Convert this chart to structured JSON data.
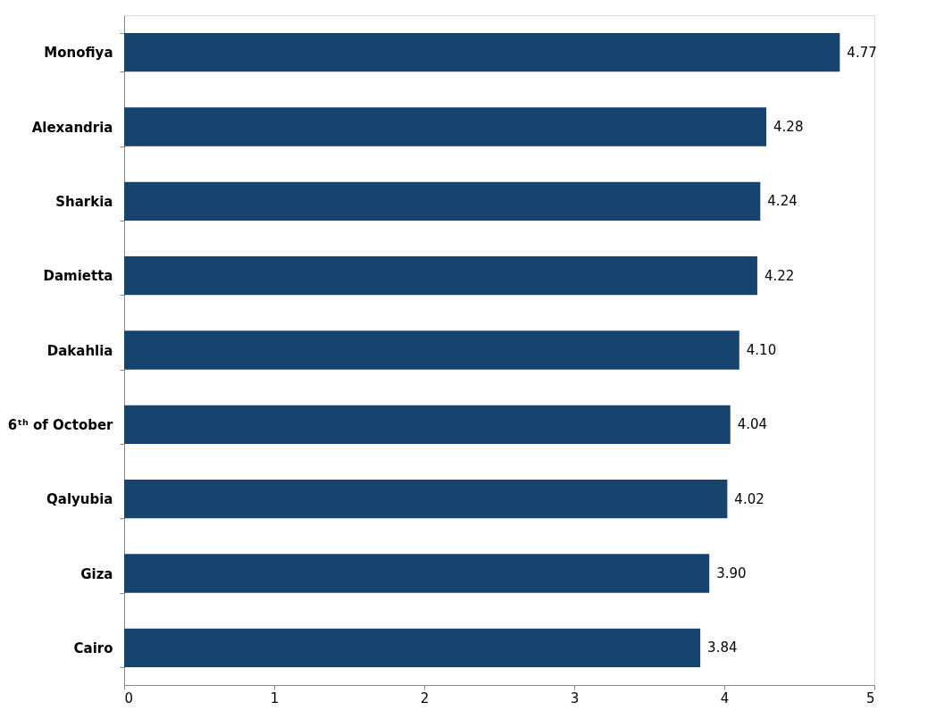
{
  "chart_data": {
    "type": "bar",
    "orientation": "horizontal",
    "categories": [
      "Monofiya",
      "Alexandria",
      "Sharkia",
      "Damietta",
      "Dakahlia",
      "6ᵗʰ of October",
      "Qalyubia",
      "Giza",
      "Cairo"
    ],
    "values": [
      4.77,
      4.28,
      4.24,
      4.22,
      4.1,
      4.04,
      4.02,
      3.9,
      3.84
    ],
    "value_labels": [
      "4.77",
      "4.28",
      "4.24",
      "4.22",
      "4.10",
      "4.04",
      "4.02",
      "3.90",
      "3.84"
    ],
    "color": "#17446f",
    "xlim": [
      0,
      5
    ],
    "xticks": [
      0,
      1,
      2,
      3,
      4,
      5
    ],
    "grid": false
  }
}
